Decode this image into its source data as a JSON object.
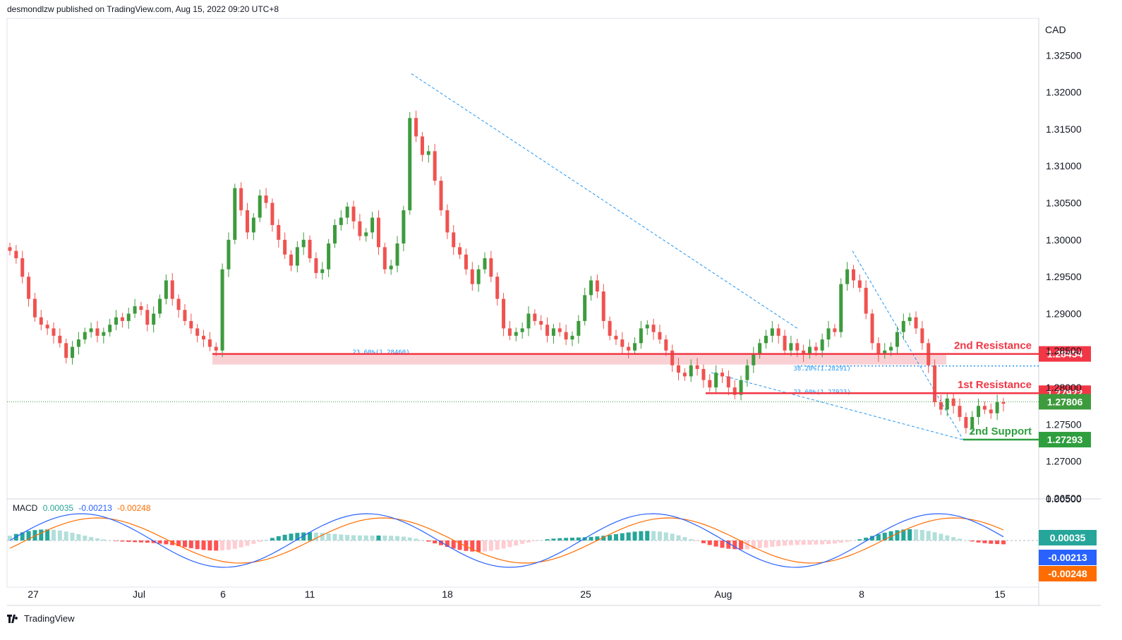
{
  "header": {
    "published": "desmondlzw published on TradingView.com, Aug 15, 2022 09:20 UTC+8"
  },
  "footer": {
    "brand": "TradingView"
  },
  "colors": {
    "up": "#26a69a",
    "candle_up": "#3d9b3d",
    "candle_down": "#ef5350",
    "resistance": "#f23645",
    "support": "#2e9e3e",
    "trend": "#2196f3",
    "macd_line": "#2962ff",
    "signal_line": "#ff6d00"
  },
  "chart_data": {
    "type": "candlestick",
    "currency_label": "CAD",
    "ylim": [
      1.265,
      1.33
    ],
    "y_ticks": [
      "1.32500",
      "1.32000",
      "1.31500",
      "1.31000",
      "1.30500",
      "1.30000",
      "1.29500",
      "1.29000",
      "1.28500",
      "1.28000",
      "1.27500",
      "1.27000",
      "1.26500"
    ],
    "x_ticks": [
      "27",
      "Jul",
      "6",
      "11",
      "18",
      "25",
      "Aug",
      "4",
      "8",
      "15"
    ],
    "levels": [
      {
        "label": "2nd Resistance",
        "value": "1.28454",
        "kind": "resistance"
      },
      {
        "label": "1st Resistance",
        "value": "1.27922",
        "kind": "resistance"
      },
      {
        "label": "2nd Support",
        "value": "1.27293",
        "kind": "support"
      }
    ],
    "current_price": "1.27806",
    "fib_labels": [
      "23.60%(1.28460)",
      "38.20%(1.28291)",
      "23.60%(1.27923)"
    ],
    "macd": {
      "label": "MACD",
      "histogram": "0.00035",
      "macd": "-0.00213",
      "signal": "-0.00248",
      "zero_label": "0.00500"
    }
  }
}
